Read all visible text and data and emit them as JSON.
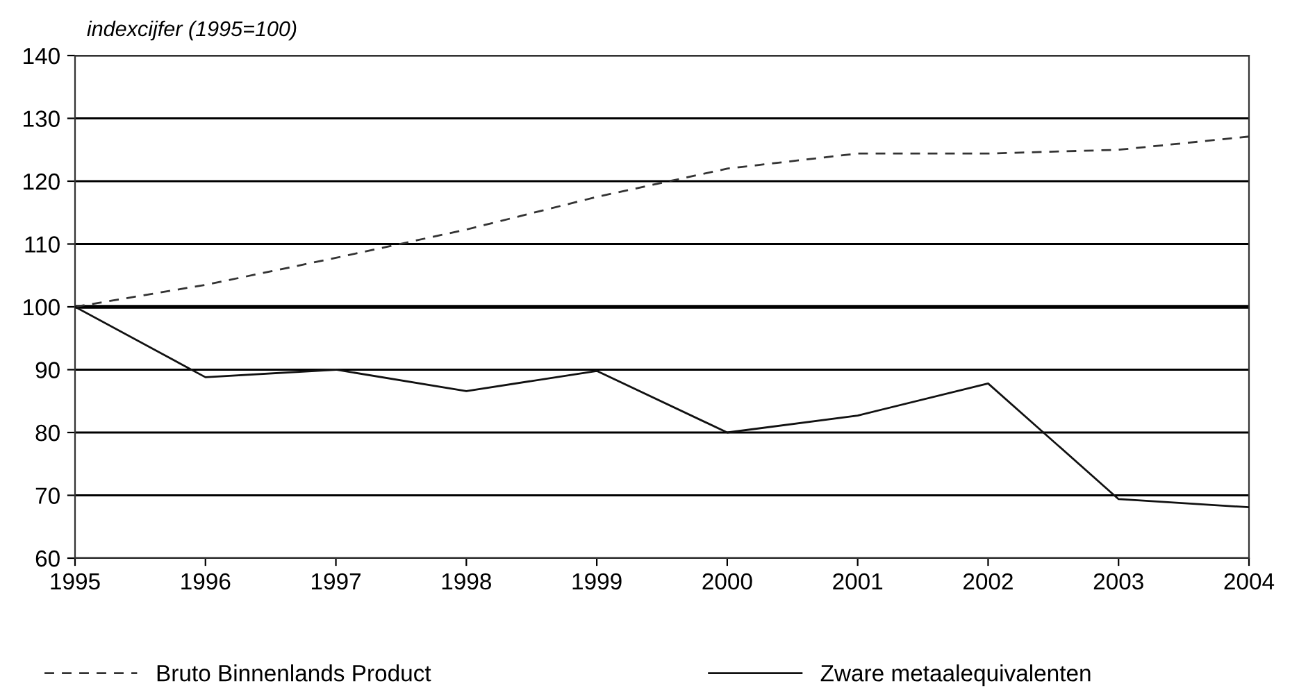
{
  "chart_data": {
    "type": "line",
    "ylabel": "indexcijfer (1995=100)",
    "x": [
      1995,
      1996,
      1997,
      1998,
      1999,
      2000,
      2001,
      2002,
      2003,
      2004
    ],
    "series": [
      {
        "name": "Bruto Binnenlands Product",
        "color": "#333333",
        "line_style": "dashed",
        "values": [
          100,
          103.5,
          107.8,
          112.3,
          117.5,
          122.0,
          124.4,
          124.4,
          125.0,
          127.1
        ]
      },
      {
        "name": "Zware metaalequivalenten",
        "color": "#111111",
        "line_style": "solid",
        "values": [
          100,
          88.8,
          90.0,
          86.6,
          89.8,
          80.0,
          82.7,
          87.8,
          69.4,
          68.1
        ]
      }
    ],
    "xlim": [
      1995,
      2004
    ],
    "xticks": [
      1995,
      1996,
      1997,
      1998,
      1999,
      2000,
      2001,
      2002,
      2003,
      2004
    ],
    "ylim": [
      60,
      140
    ],
    "yticks": [
      60,
      70,
      80,
      90,
      100,
      110,
      120,
      130,
      140
    ],
    "ref_lines": [
      {
        "axis": "y",
        "value": 100,
        "color": "#000000"
      }
    ],
    "grid": "y",
    "legend": "bottom",
    "marker": "none"
  }
}
